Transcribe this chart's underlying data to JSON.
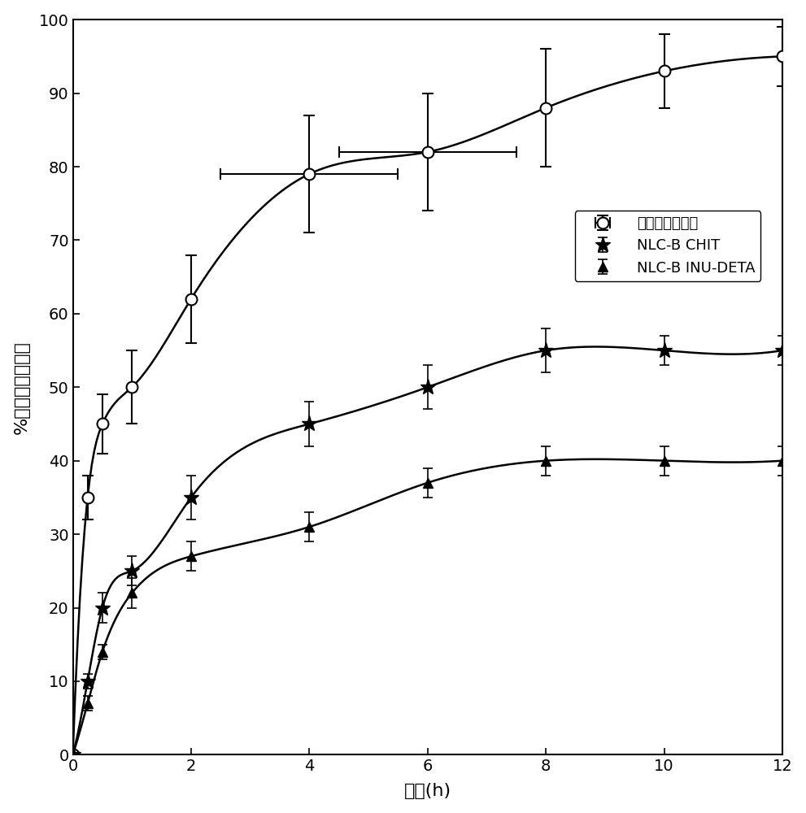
{
  "title": "",
  "xlabel": "时间(h)",
  "ylabel": "%释放的水飞蓓宾",
  "xlim": [
    0,
    12
  ],
  "ylim": [
    0,
    100
  ],
  "xticks": [
    0,
    2,
    4,
    6,
    8,
    10,
    12
  ],
  "yticks": [
    0,
    10,
    20,
    30,
    40,
    50,
    60,
    70,
    80,
    90,
    100
  ],
  "series1_label": "水飞蓓宾的溶解",
  "series1_x": [
    0,
    0.25,
    0.5,
    1.0,
    2.0,
    4.0,
    6.0,
    8.0,
    10.0,
    12.0
  ],
  "series1_y": [
    0,
    35,
    45,
    50,
    62,
    79,
    82,
    88,
    93,
    95
  ],
  "series1_xerr": [
    0,
    0,
    0,
    0,
    0,
    1.5,
    1.5,
    0,
    0,
    0
  ],
  "series1_yerr": [
    0,
    3,
    4,
    5,
    6,
    8,
    8,
    8,
    5,
    4
  ],
  "series1_color": "#000000",
  "series1_markerfacecolor": "white",
  "series2_label": "NLC-B CHIT",
  "series2_x": [
    0,
    0.25,
    0.5,
    1.0,
    2.0,
    4.0,
    6.0,
    8.0,
    10.0,
    12.0
  ],
  "series2_y": [
    0,
    10,
    20,
    25,
    35,
    45,
    50,
    55,
    55,
    55
  ],
  "series2_yerr": [
    0,
    1,
    2,
    2,
    3,
    3,
    3,
    3,
    2,
    2
  ],
  "series2_color": "#000000",
  "series3_label": "NLC-B INU-DETA",
  "series3_x": [
    0,
    0.25,
    0.5,
    1.0,
    2.0,
    4.0,
    6.0,
    8.0,
    10.0,
    12.0
  ],
  "series3_y": [
    0,
    7,
    14,
    22,
    27,
    31,
    37,
    40,
    40,
    40
  ],
  "series3_yerr": [
    0,
    1,
    1,
    2,
    2,
    2,
    2,
    2,
    2,
    2
  ],
  "series3_color": "#000000",
  "background_color": "#ffffff",
  "linewidth": 1.8,
  "tick_font_size": 14,
  "label_font_size": 16
}
